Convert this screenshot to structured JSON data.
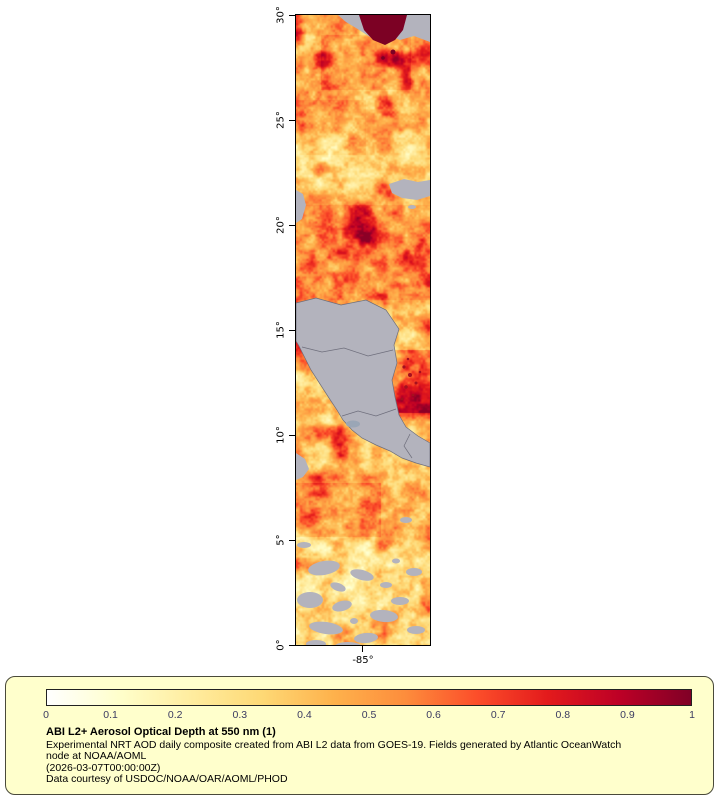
{
  "map": {
    "x_axis_label": "-85°",
    "y_tick_labels": [
      "30°",
      "25°",
      "20°",
      "15°",
      "10°",
      "5°",
      "0°"
    ],
    "no_data_color": "#b3b3bd"
  },
  "colorbar": {
    "tick_labels": [
      "0",
      "0.1",
      "0.2",
      "0.3",
      "0.4",
      "0.5",
      "0.6",
      "0.7",
      "0.8",
      "0.9",
      "1"
    ],
    "colors": [
      "#ffffff",
      "#ffffcc",
      "#ffeda0",
      "#fed976",
      "#feb24c",
      "#fd8d3c",
      "#fc4e2a",
      "#e31a1c",
      "#bd0026",
      "#800026"
    ]
  },
  "legend": {
    "title": "ABI L2+ Aerosol Optical Depth at 550 nm (1)",
    "description": "Experimental NRT AOD daily composite created from ABI L2 data from GOES-19. Fields generated by Atlantic OceanWatch node at NOAA/AOML",
    "timestamp": "(2026-03-07T00:00:00Z)",
    "credit": "Data courtesy of USDOC/NOAA/OAR/AOML/PHOD",
    "background": "#ffffcc"
  }
}
